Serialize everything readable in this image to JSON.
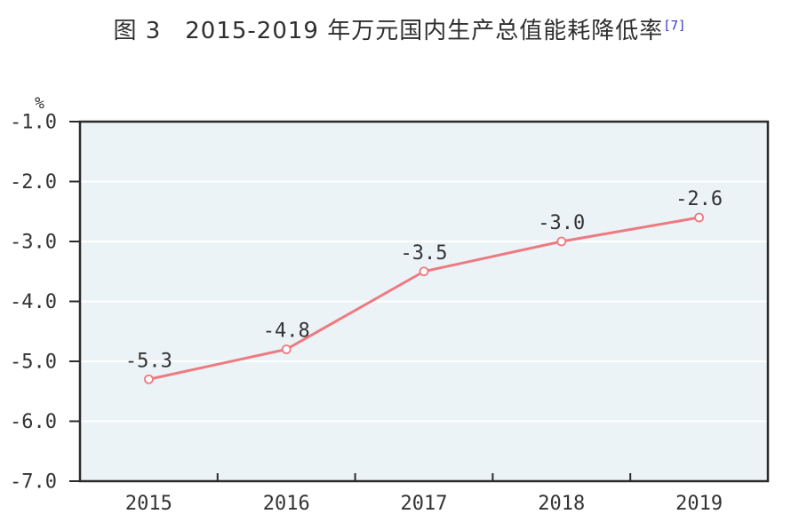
{
  "title": {
    "text": "图 3　2015-2019 年万元国内生产总值能耗降低率",
    "footnote": "[7]"
  },
  "chart_data": {
    "type": "line",
    "title": "图 3 2015-2019 年万元国内生产总值能耗降低率[7]",
    "categories": [
      "2015",
      "2016",
      "2017",
      "2018",
      "2019"
    ],
    "series": [
      {
        "name": "万元国内生产总值能耗降低率",
        "values": [
          -5.3,
          -4.8,
          -3.5,
          -3.0,
          -2.6
        ],
        "point_labels": [
          "-5.3",
          "-4.8",
          "-3.5",
          "-3.0",
          "-2.6"
        ]
      }
    ],
    "xlabel": "",
    "ylabel": "%",
    "ylim": [
      -7.0,
      -1.0
    ],
    "yticks": [
      -1.0,
      -2.0,
      -3.0,
      -4.0,
      -5.0,
      -6.0,
      -7.0
    ],
    "ytick_labels": [
      "-1.0",
      "-2.0",
      "-3.0",
      "-4.0",
      "-5.0",
      "-6.0",
      "-7.0"
    ],
    "grid": true,
    "legend": false,
    "colors": {
      "line": "#ee7a80",
      "marker_fill": "#ffffff",
      "plot_bg": "#ebf3f7",
      "gridline": "#ffffff",
      "axis": "#2b2b2b",
      "text": "#333333",
      "footnote": "#3333cc"
    }
  }
}
